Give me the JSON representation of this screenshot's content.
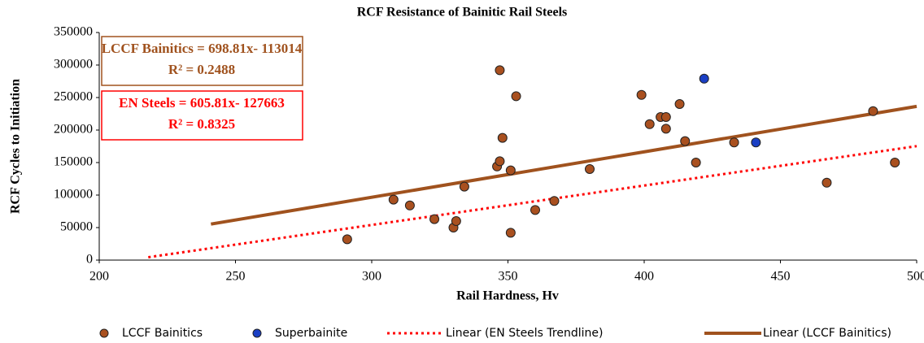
{
  "chart_data": {
    "type": "scatter",
    "title": "RCF  Resistance of Bainitic Rail Steels",
    "x_label": "Rail Hardness,  Hv",
    "y_label": "RCF  Cycles to Initiation",
    "xlim": [
      200,
      500
    ],
    "xticks": [
      200,
      250,
      300,
      350,
      400,
      450,
      500
    ],
    "ylim": [
      0,
      350000
    ],
    "yticks": [
      0,
      50000,
      100000,
      150000,
      200000,
      250000,
      300000,
      350000
    ],
    "grid": false,
    "legend": "bottom",
    "series": [
      {
        "name": "LCCF Bainitics",
        "kind": "scatter",
        "color": "#a9501f",
        "x": [
          291,
          308,
          314,
          323,
          330,
          331,
          334,
          346,
          347,
          347,
          348,
          351,
          351,
          353,
          360,
          367,
          380,
          399,
          402,
          406,
          408,
          408,
          413,
          415,
          419,
          433,
          467,
          484,
          492
        ],
        "values": [
          32000,
          93000,
          84000,
          63000,
          50000,
          60000,
          113000,
          144000,
          292000,
          152000,
          188000,
          138000,
          42000,
          252000,
          77000,
          91000,
          140000,
          254000,
          209000,
          220000,
          220000,
          202000,
          240000,
          183000,
          150000,
          181000,
          119000,
          229000,
          150000
        ]
      },
      {
        "name": "Superbainite",
        "kind": "scatter",
        "color": "#1a3fc4",
        "x": [
          422,
          441
        ],
        "values": [
          279000,
          181000
        ]
      },
      {
        "name": "Linear (EN Steels Trendline)",
        "kind": "line",
        "style": "dotted",
        "color": "#ff0000",
        "x": [
          218,
          500
        ],
        "values": [
          4404,
          175242
        ]
      },
      {
        "name": "Linear (LCCF Bainitics)",
        "kind": "line",
        "style": "solid",
        "color": "#a0521e",
        "x": [
          241,
          500
        ],
        "values": [
          55399,
          236391
        ]
      }
    ],
    "annotations": [
      {
        "lines": [
          "LCCF  Bainitics = 698.81x- 113014",
          "R² = 0.2488"
        ],
        "color": "#a0521e"
      },
      {
        "lines": [
          "EN  Steels = 605.81x- 127663",
          "R² = 0.8325"
        ],
        "color": "#ff0000"
      }
    ]
  }
}
